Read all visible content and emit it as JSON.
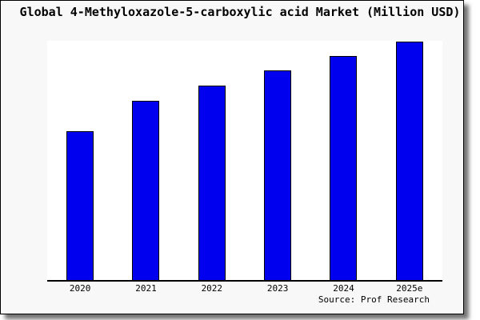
{
  "title": "Global 4-Methyloxazole-5-carboxylic acid Market (Million USD)",
  "source": "Source: Prof Research",
  "colors": {
    "bar_fill": "#0000ee",
    "bar_border": "#000000",
    "card_background": "#f8f8f8",
    "plot_background": "#ffffff",
    "axis": "#000000",
    "text": "#000000"
  },
  "chart_data": {
    "type": "bar",
    "title": "Global 4-Methyloxazole-5-carboxylic acid Market (Million USD)",
    "categories": [
      "2020",
      "2021",
      "2022",
      "2023",
      "2024",
      "2025e"
    ],
    "values": [
      62.2,
      74.9,
      81.3,
      87.6,
      93.6,
      99.7
    ],
    "value_note": "no y-axis ticks or value labels are shown; values are relative bar heights in % of plot height",
    "xlabel": "",
    "ylabel": "",
    "ylim": [
      0,
      100
    ],
    "grid": false,
    "legend": false,
    "bar_color": "#0000ee",
    "source_credit": "Source: Prof Research"
  }
}
